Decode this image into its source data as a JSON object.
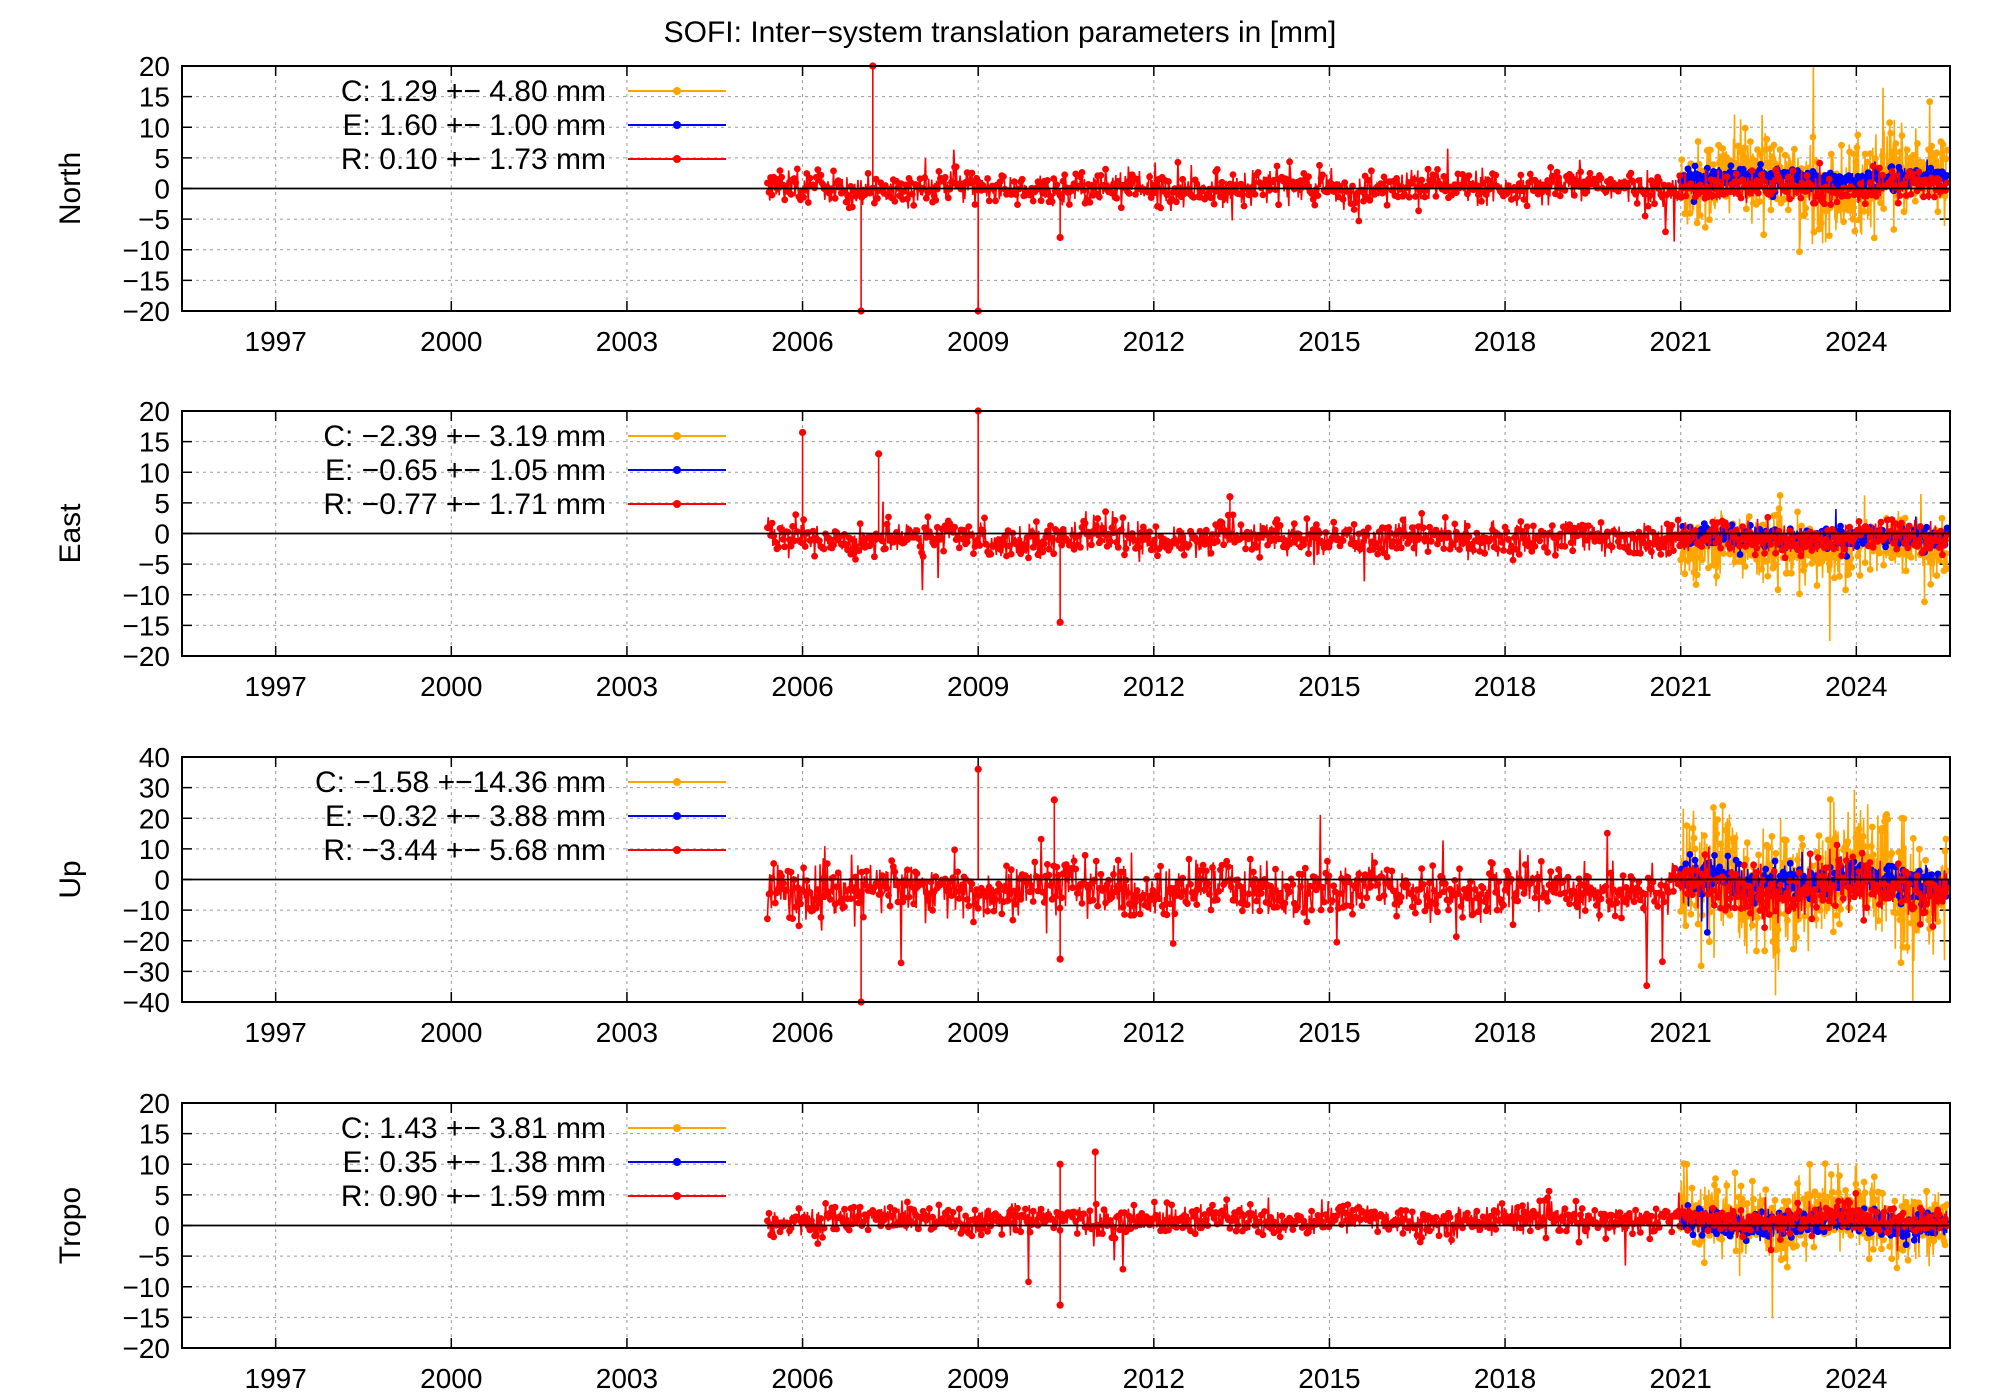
{
  "title": "SOFI: Inter−system translation parameters in [mm]",
  "colors": {
    "C": "#ffa500",
    "E": "#0000ff",
    "R": "#ff0000"
  },
  "chart_data": [
    {
      "type": "scatter",
      "ylabel": "North",
      "ylim": [
        -20,
        20
      ],
      "yticks": [
        20,
        15,
        10,
        5,
        0,
        -5,
        -10,
        -15,
        -20
      ],
      "xlim": [
        1995.4,
        2025.6
      ],
      "xticks": [
        1997,
        2000,
        2003,
        2006,
        2009,
        2012,
        2015,
        2018,
        2021,
        2024
      ],
      "grid": true,
      "legend_position": "top-left",
      "series": [
        {
          "key": "C",
          "label": "C:   1.29 +− 4.80 mm",
          "x_range": [
            2021.0,
            2025.55
          ],
          "mean": 1.29,
          "sigma": 4.8
        },
        {
          "key": "E",
          "label": "E:   1.60 +− 1.00 mm",
          "x_range": [
            2021.0,
            2025.55
          ],
          "mean": 1.6,
          "sigma": 1.0
        },
        {
          "key": "R",
          "label": "R:   0.10 +− 1.73 mm",
          "x_range": [
            2005.4,
            2025.55
          ],
          "mean": 0.1,
          "sigma": 1.73
        }
      ],
      "spikes": [
        {
          "x": 2007.2,
          "y": 20,
          "series": "R"
        },
        {
          "x": 2007.0,
          "y": -20,
          "series": "R"
        },
        {
          "x": 2009.0,
          "y": -20,
          "series": "R"
        },
        {
          "x": 2010.4,
          "y": -8,
          "series": "R"
        }
      ]
    },
    {
      "type": "scatter",
      "ylabel": "East",
      "ylim": [
        -20,
        20
      ],
      "yticks": [
        20,
        15,
        10,
        5,
        0,
        -5,
        -10,
        -15,
        -20
      ],
      "xlim": [
        1995.4,
        2025.6
      ],
      "xticks": [
        1997,
        2000,
        2003,
        2006,
        2009,
        2012,
        2015,
        2018,
        2021,
        2024
      ],
      "grid": true,
      "legend_position": "top-left",
      "series": [
        {
          "key": "C",
          "label": "C:  −2.39 +− 3.19 mm",
          "x_range": [
            2021.0,
            2025.55
          ],
          "mean": -2.39,
          "sigma": 3.19
        },
        {
          "key": "E",
          "label": "E:  −0.65 +− 1.05 mm",
          "x_range": [
            2021.0,
            2025.55
          ],
          "mean": -0.65,
          "sigma": 1.05
        },
        {
          "key": "R",
          "label": "R:  −0.77 +− 1.71 mm",
          "x_range": [
            2005.4,
            2025.55
          ],
          "mean": -0.77,
          "sigma": 1.71
        }
      ],
      "spikes": [
        {
          "x": 2009.0,
          "y": 20,
          "series": "R"
        },
        {
          "x": 2006.0,
          "y": 16.5,
          "series": "R"
        },
        {
          "x": 2007.3,
          "y": 13,
          "series": "R"
        },
        {
          "x": 2010.4,
          "y": -14.5,
          "series": "R"
        },
        {
          "x": 2013.3,
          "y": 6,
          "series": "R"
        }
      ]
    },
    {
      "type": "scatter",
      "ylabel": "Up",
      "ylim": [
        -40,
        40
      ],
      "yticks": [
        40,
        30,
        20,
        10,
        0,
        -10,
        -20,
        -30,
        -40
      ],
      "xlim": [
        1995.4,
        2025.6
      ],
      "xticks": [
        1997,
        2000,
        2003,
        2006,
        2009,
        2012,
        2015,
        2018,
        2021,
        2024
      ],
      "grid": true,
      "legend_position": "top-left",
      "series": [
        {
          "key": "C",
          "label": "C:  −1.58 +−14.36 mm",
          "x_range": [
            2021.0,
            2025.55
          ],
          "mean": -1.58,
          "sigma": 14.36
        },
        {
          "key": "E",
          "label": "E:  −0.32 +− 3.88 mm",
          "x_range": [
            2021.0,
            2025.55
          ],
          "mean": -0.32,
          "sigma": 3.88
        },
        {
          "key": "R",
          "label": "R:  −3.44 +− 5.68 mm",
          "x_range": [
            2005.4,
            2025.55
          ],
          "mean": -3.44,
          "sigma": 5.68
        }
      ],
      "spikes": [
        {
          "x": 2009.0,
          "y": 36,
          "series": "R"
        },
        {
          "x": 2007.0,
          "y": -40,
          "series": "R"
        },
        {
          "x": 2010.3,
          "y": 26,
          "series": "R"
        },
        {
          "x": 2010.4,
          "y": -26,
          "series": "R"
        }
      ]
    },
    {
      "type": "scatter",
      "ylabel": "Tropo",
      "ylim": [
        -20,
        20
      ],
      "yticks": [
        20,
        15,
        10,
        5,
        0,
        -5,
        -10,
        -15,
        -20
      ],
      "xlim": [
        1995.4,
        2025.6
      ],
      "xticks": [
        1997,
        2000,
        2003,
        2006,
        2009,
        2012,
        2015,
        2018,
        2021,
        2024
      ],
      "grid": true,
      "legend_position": "top-left",
      "series": [
        {
          "key": "C",
          "label": "C:   1.43 +− 3.81 mm",
          "x_range": [
            2021.0,
            2025.55
          ],
          "mean": 1.43,
          "sigma": 3.81
        },
        {
          "key": "E",
          "label": "E:   0.35 +− 1.38 mm",
          "x_range": [
            2021.0,
            2025.55
          ],
          "mean": 0.35,
          "sigma": 1.38
        },
        {
          "key": "R",
          "label": "R:   0.90 +− 1.59 mm",
          "x_range": [
            2005.4,
            2025.55
          ],
          "mean": 0.9,
          "sigma": 1.59
        }
      ],
      "spikes": [
        {
          "x": 2010.4,
          "y": -13,
          "series": "R"
        },
        {
          "x": 2010.4,
          "y": 10,
          "series": "R"
        },
        {
          "x": 2011.0,
          "y": 12,
          "series": "R"
        }
      ]
    }
  ]
}
